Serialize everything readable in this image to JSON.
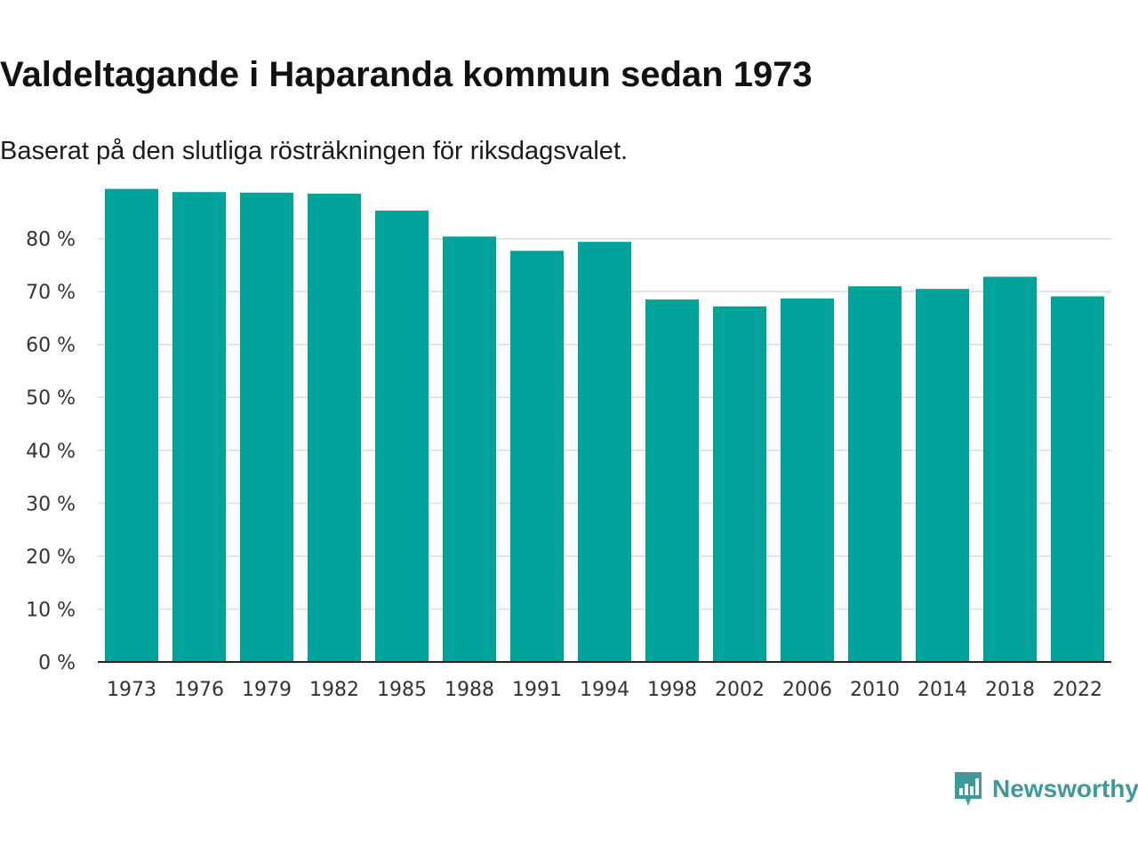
{
  "colors": {
    "bar": "#00a39a",
    "grid": "#dcdcdc",
    "axis": "#222222",
    "brand": "#3d9a98"
  },
  "chart_data": {
    "type": "bar",
    "title": "Valdeltagande i Haparanda kommun sedan 1973",
    "subtitle": "Baserat på den slutliga rösträkningen för riksdagsvalet.",
    "xlabel": "",
    "ylabel": "",
    "ylim": [
      0,
      89
    ],
    "yticks": [
      0,
      10,
      20,
      30,
      40,
      50,
      60,
      70,
      80
    ],
    "ytick_labels": [
      "0 %",
      "10 %",
      "20 %",
      "30 %",
      "40 %",
      "50 %",
      "60 %",
      "70 %",
      "80 %"
    ],
    "grid": true,
    "categories": [
      "1973",
      "1976",
      "1979",
      "1982",
      "1985",
      "1988",
      "1991",
      "1994",
      "1998",
      "2002",
      "2006",
      "2010",
      "2014",
      "2018",
      "2022"
    ],
    "values": [
      89.4,
      88.8,
      88.7,
      88.5,
      85.3,
      80.4,
      77.7,
      79.4,
      68.5,
      67.2,
      68.7,
      71.0,
      70.5,
      72.8,
      69.1
    ]
  },
  "branding": {
    "logo_text": "Newsworthy",
    "logo_icon": "newsworthy-chart-bubble-icon"
  }
}
